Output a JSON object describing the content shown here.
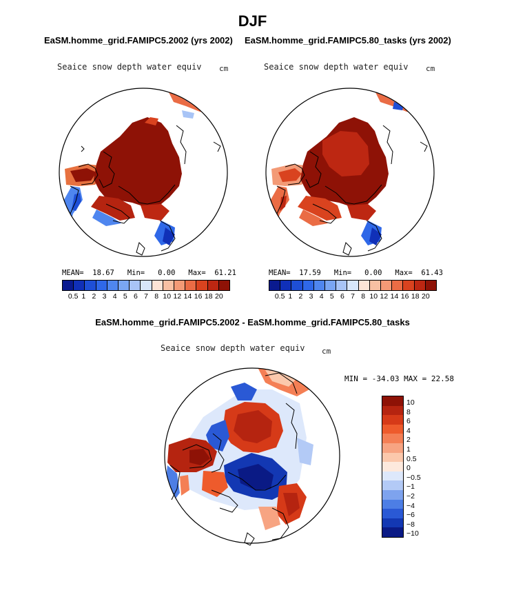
{
  "title": "DJF",
  "left_panel": {
    "subtitle": "EaSM.homme_grid.FAMIPC5.2002 (yrs 2002)",
    "variable": "Seaice snow depth water equiv",
    "units": "cm",
    "mean_label": "MEAN=",
    "mean": "18.67",
    "min_label": "Min=",
    "min": "0.00",
    "max_label": "Max=",
    "max": "61.21"
  },
  "right_panel": {
    "subtitle": "EaSM.homme_grid.FAMIPC5.80_tasks (yrs 2002)",
    "variable": "Seaice snow depth water equiv",
    "units": "cm",
    "mean_label": "MEAN=",
    "mean": "17.59",
    "min_label": "Min=",
    "min": "0.00",
    "max_label": "Max=",
    "max": "61.43"
  },
  "diff_panel": {
    "subtitle": "EaSM.homme_grid.FAMIPC5.2002 - EaSM.homme_grid.FAMIPC5.80_tasks",
    "variable": "Seaice snow depth water equiv",
    "units": "cm",
    "minmax_text": "MIN = -34.03 MAX = 22.58"
  },
  "colorbar": {
    "ticks": [
      "0.5",
      "1",
      "2",
      "3",
      "4",
      "5",
      "6",
      "7",
      "8",
      "10",
      "12",
      "14",
      "16",
      "18",
      "20"
    ],
    "colors": [
      "#0a1a8f",
      "#1030b8",
      "#1e4fd6",
      "#2f68e8",
      "#4f86ef",
      "#7aa6f3",
      "#a8c4f6",
      "#d8e6fa",
      "#fde4d6",
      "#f8c0a3",
      "#f39a76",
      "#ea6c45",
      "#d9431f",
      "#bd2712",
      "#8e1206"
    ]
  },
  "diff_colorbar": {
    "ticks": [
      "10",
      "8",
      "6",
      "4",
      "2",
      "1",
      "0.5",
      "0",
      "−0.5",
      "−1",
      "−2",
      "−4",
      "−6",
      "−8",
      "−10"
    ],
    "colors": [
      "#8e1206",
      "#b52410",
      "#d63a18",
      "#ee5b2c",
      "#f47f55",
      "#f7a482",
      "#fbc8ac",
      "#fde9dd",
      "#dde8fb",
      "#b3caf6",
      "#7ea3ee",
      "#4d7ee5",
      "#2a59d5",
      "#1338b3",
      "#0a1a85"
    ]
  }
}
